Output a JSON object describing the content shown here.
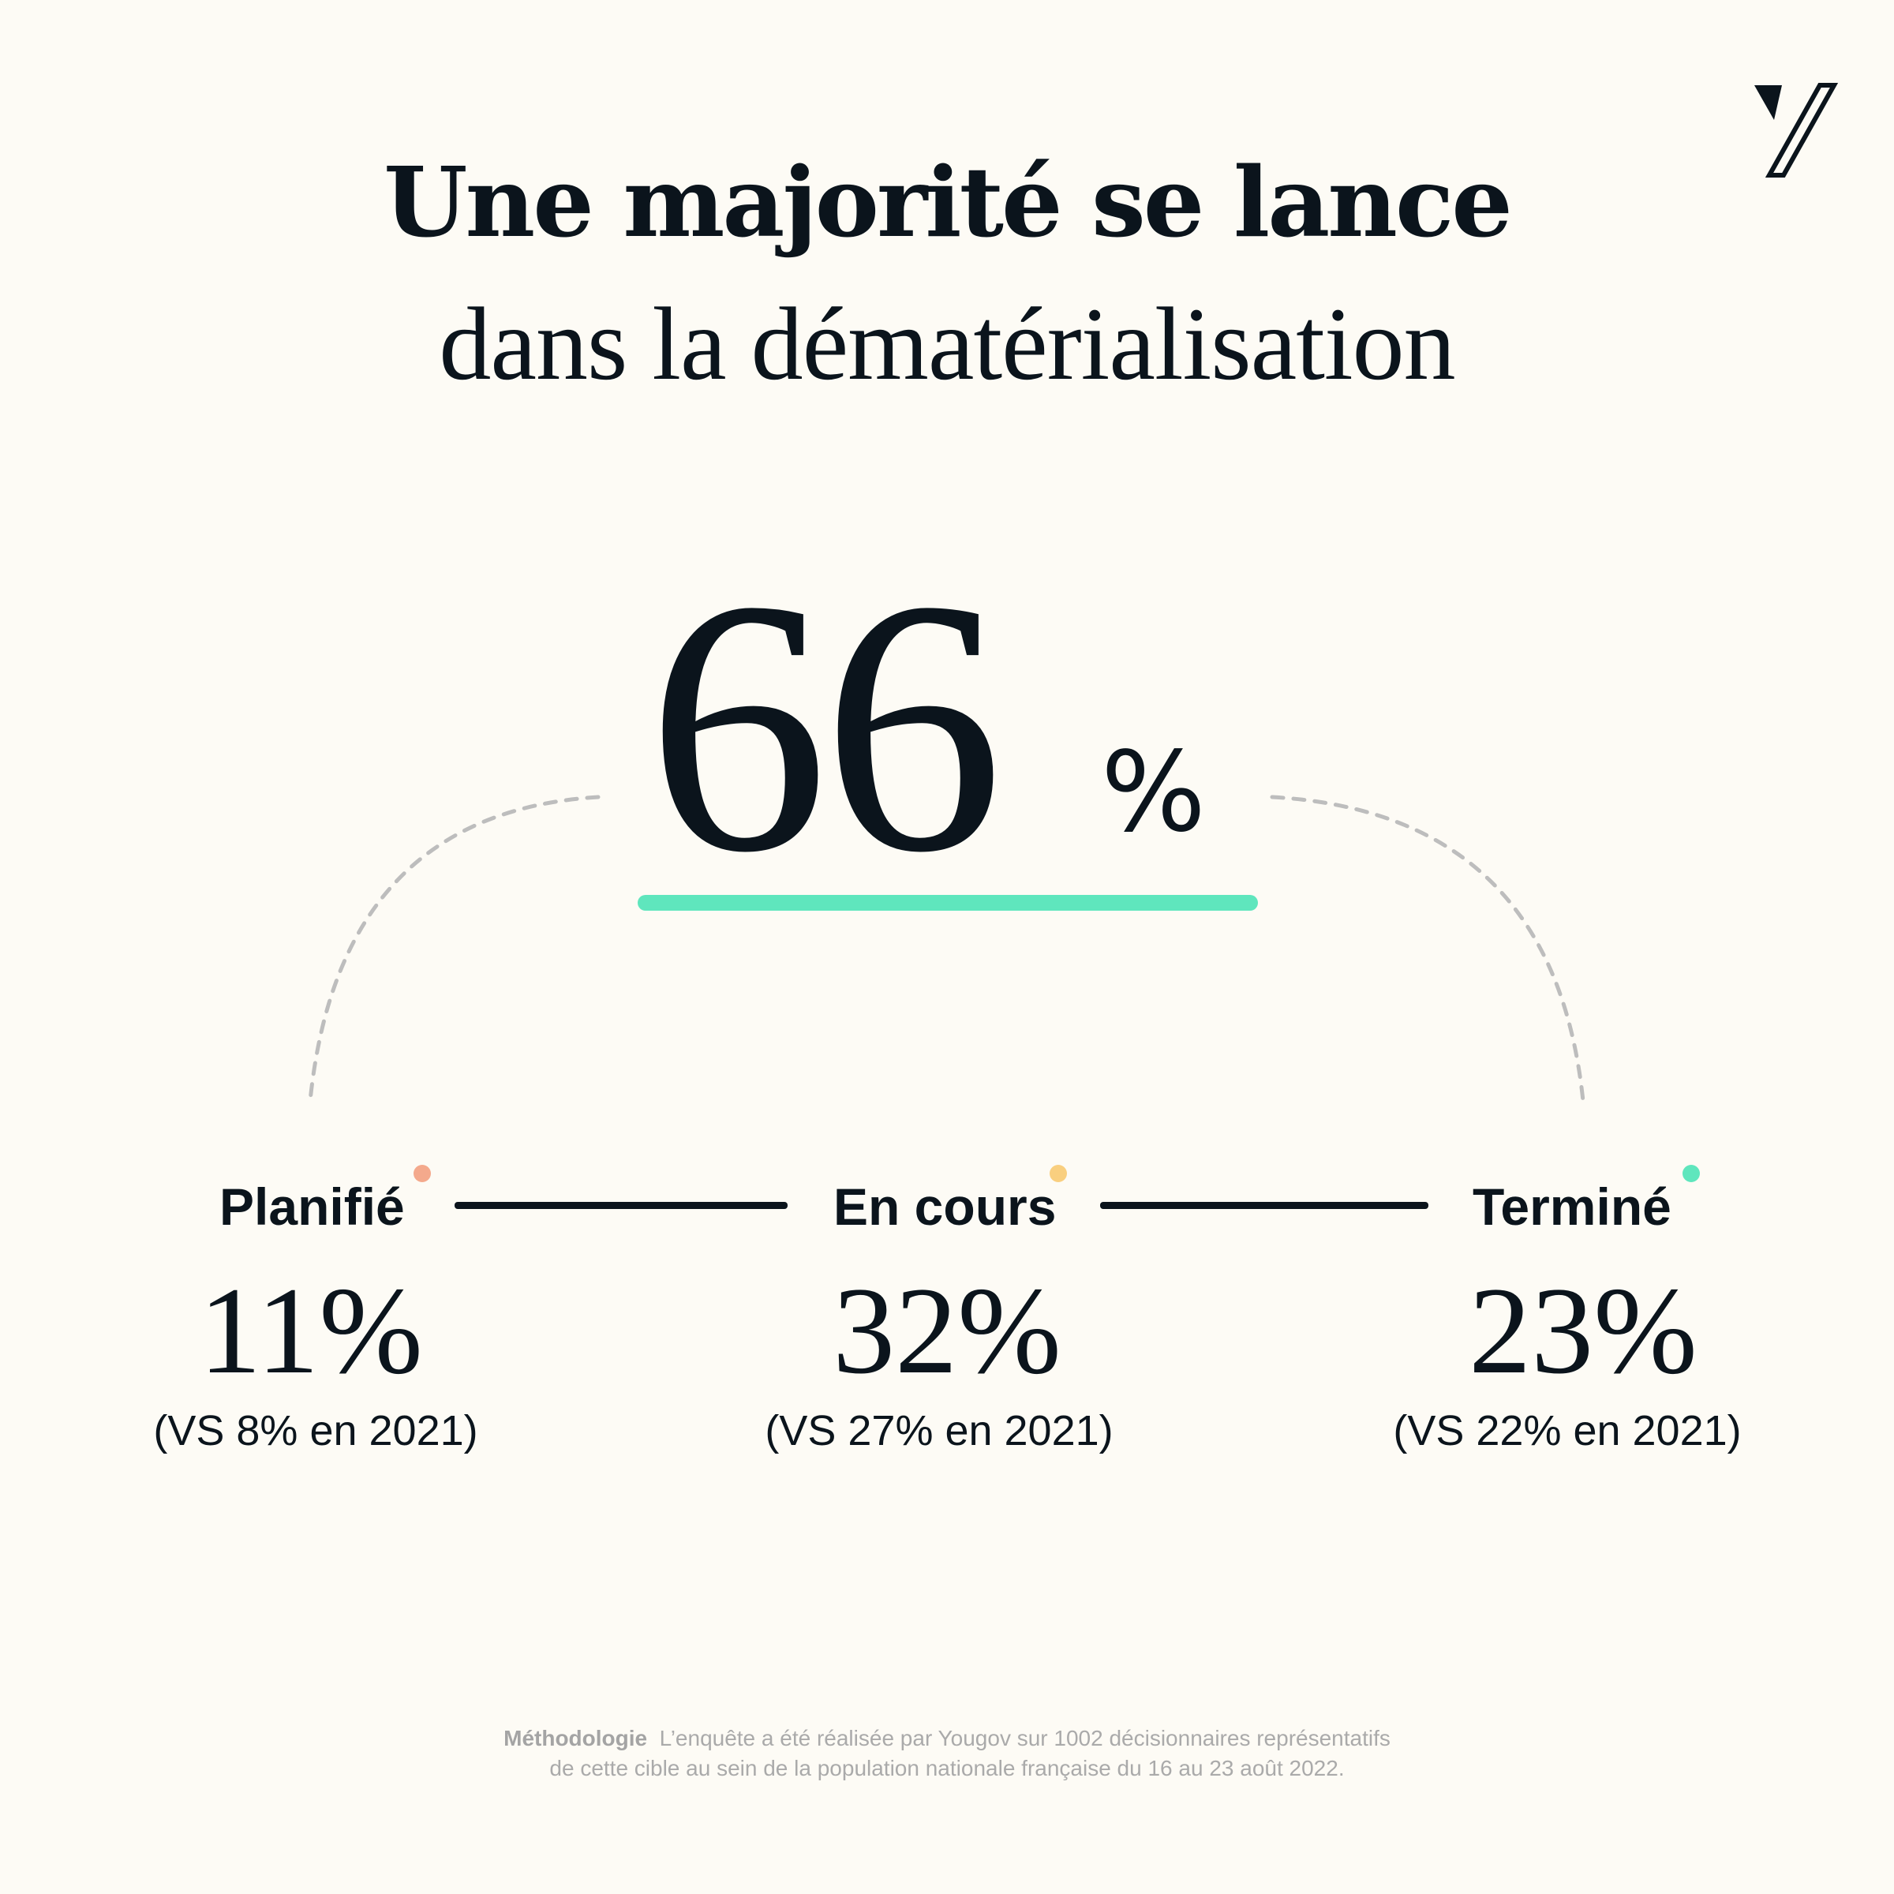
{
  "title": {
    "line1": "Une majorité se lance",
    "line2": "dans la dématérialisation"
  },
  "headline": {
    "value": "66",
    "unit": "%",
    "underline_color": "#5fe6bd"
  },
  "stages": [
    {
      "label": "Planifié",
      "value": "11%",
      "comparison": "(VS 8% en 2021)",
      "dot_color": "#f4a98c"
    },
    {
      "label": "En cours",
      "value": "32%",
      "comparison": "(VS 27% en 2021)",
      "dot_color": "#f9cf7f"
    },
    {
      "label": "Terminé",
      "value": "23%",
      "comparison": "(VS 22% en 2021)",
      "dot_color": "#5fe6bd"
    }
  ],
  "methodology": {
    "label": "Méthodologie",
    "line1": "L’enquête a été réalisée par Yougov sur 1002 décisionnaires représentatifs",
    "line2": "de cette cible au sein de la population nationale française du 16 au 23 août 2022."
  },
  "logo": {
    "icon": "slash-logo-icon"
  }
}
